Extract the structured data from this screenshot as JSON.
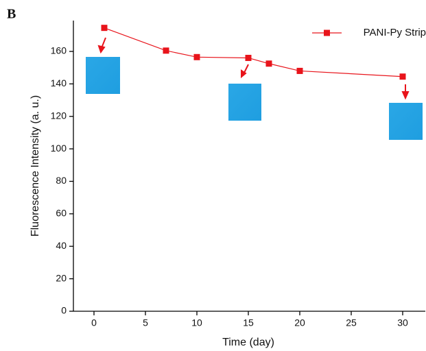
{
  "chart_data": {
    "type": "line",
    "panel_label": "B",
    "x_label": "Time (day)",
    "y_label": "Fluorescence Intensity (a. u.)",
    "x": [
      1,
      7,
      10,
      15,
      17,
      20,
      30
    ],
    "series": [
      {
        "name": "PANI-Py Strip",
        "color": "#e8141b",
        "values": [
          174.5,
          160.5,
          156.5,
          156,
          152.5,
          148,
          144.5
        ]
      }
    ],
    "xlim": [
      -2,
      32.2
    ],
    "xticks": [
      0,
      5,
      10,
      15,
      20,
      25,
      30
    ],
    "ylim": [
      0,
      179
    ],
    "yticks": [
      0,
      20,
      40,
      60,
      80,
      100,
      120,
      140,
      160
    ],
    "legend": "upper right"
  }
}
